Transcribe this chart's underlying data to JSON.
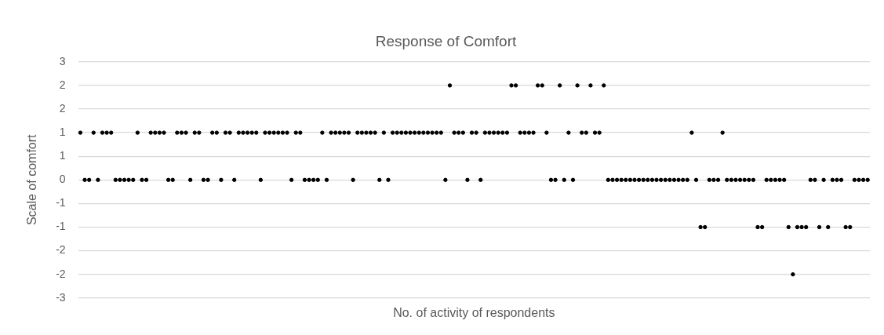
{
  "chart_data": {
    "type": "scatter",
    "title": "Response of Comfort",
    "xlabel": "No. of activity of respondents",
    "ylabel": "Scale of comfort",
    "categories": [
      null,
      null,
      null,
      null,
      null,
      null,
      null,
      null,
      null,
      null,
      null,
      null,
      null,
      null,
      null,
      null,
      null,
      null,
      null,
      null,
      null,
      null,
      null,
      null,
      null,
      null,
      null,
      null,
      null,
      null,
      null,
      null,
      null,
      null,
      null,
      null,
      null,
      null,
      null,
      null,
      null,
      null,
      null,
      null,
      null,
      null,
      null,
      null,
      null,
      null,
      null,
      null,
      null,
      null,
      null,
      null,
      null,
      null,
      null,
      null,
      null,
      null,
      null,
      null,
      null,
      null,
      null,
      null,
      null,
      null,
      null,
      null,
      null,
      null,
      null,
      null,
      null,
      null,
      null,
      null,
      null,
      null,
      null,
      null,
      null,
      null,
      null,
      null,
      null,
      null,
      null,
      null,
      null,
      null,
      null,
      null,
      null,
      null,
      null,
      null,
      null,
      null,
      null,
      null,
      null,
      null,
      null,
      null,
      null,
      null,
      null,
      null,
      null,
      null,
      null,
      null,
      null,
      null,
      null,
      null,
      null,
      null,
      null,
      null,
      null,
      null,
      null,
      null,
      null,
      null,
      null,
      null,
      null,
      null,
      null,
      null,
      null,
      null,
      null,
      null,
      null,
      null,
      null,
      null,
      null,
      null,
      null,
      null,
      null,
      null,
      null,
      null,
      null,
      null,
      null,
      null,
      null,
      null,
      null,
      null,
      null,
      null,
      null,
      null,
      null,
      null,
      null,
      null,
      null,
      null,
      null,
      null,
      null,
      null,
      null,
      null,
      null,
      null,
      null,
      null
    ],
    "series": [
      {
        "color": "#000000",
        "values": [
          1,
          0,
          0,
          1,
          0,
          1,
          1,
          1,
          0,
          0,
          0,
          0,
          0,
          1,
          0,
          0,
          1,
          1,
          1,
          1,
          0,
          0,
          1,
          1,
          1,
          0,
          1,
          1,
          0,
          0,
          1,
          1,
          0,
          1,
          1,
          0,
          1,
          1,
          1,
          1,
          1,
          0,
          1,
          1,
          1,
          1,
          1,
          1,
          0,
          1,
          1,
          0,
          0,
          0,
          0,
          1,
          0,
          1,
          1,
          1,
          1,
          1,
          0,
          1,
          1,
          1,
          1,
          1,
          0,
          1,
          0,
          1,
          1,
          1,
          1,
          1,
          1,
          1,
          1,
          1,
          1,
          1,
          1,
          0,
          2,
          1,
          1,
          1,
          0,
          1,
          1,
          0,
          1,
          1,
          1,
          1,
          1,
          1,
          2,
          2,
          1,
          1,
          1,
          1,
          2,
          2,
          1,
          0,
          0,
          2,
          0,
          1,
          0,
          2,
          1,
          1,
          2,
          1,
          1,
          2,
          0,
          0,
          0,
          0,
          0,
          0,
          0,
          0,
          0,
          0,
          0,
          0,
          0,
          0,
          0,
          0,
          0,
          0,
          0,
          1,
          0,
          -1,
          -1,
          0,
          0,
          0,
          1,
          0,
          0,
          0,
          0,
          0,
          0,
          0,
          -1,
          -1,
          0,
          0,
          0,
          0,
          0,
          -1,
          -2,
          -1,
          -1,
          -1,
          0,
          0,
          -1,
          0,
          -1,
          0,
          0,
          0,
          -1,
          -1,
          0,
          0,
          0,
          0
        ]
      }
    ],
    "ylim": [
      -2.5,
      2.5
    ],
    "yticks": [
      {
        "value": 2.5,
        "label": "3"
      },
      {
        "value": 2,
        "label": "2"
      },
      {
        "value": 1.5,
        "label": "2"
      },
      {
        "value": 1,
        "label": "1"
      },
      {
        "value": 0.5,
        "label": "1"
      },
      {
        "value": 0,
        "label": "0"
      },
      {
        "value": -0.5,
        "label": "-1"
      },
      {
        "value": -1,
        "label": "-1"
      },
      {
        "value": -1.5,
        "label": "-2"
      },
      {
        "value": -2,
        "label": "-2"
      },
      {
        "value": -2.5,
        "label": "-3"
      }
    ],
    "grid": "y",
    "legend": false,
    "marker": "circle"
  }
}
